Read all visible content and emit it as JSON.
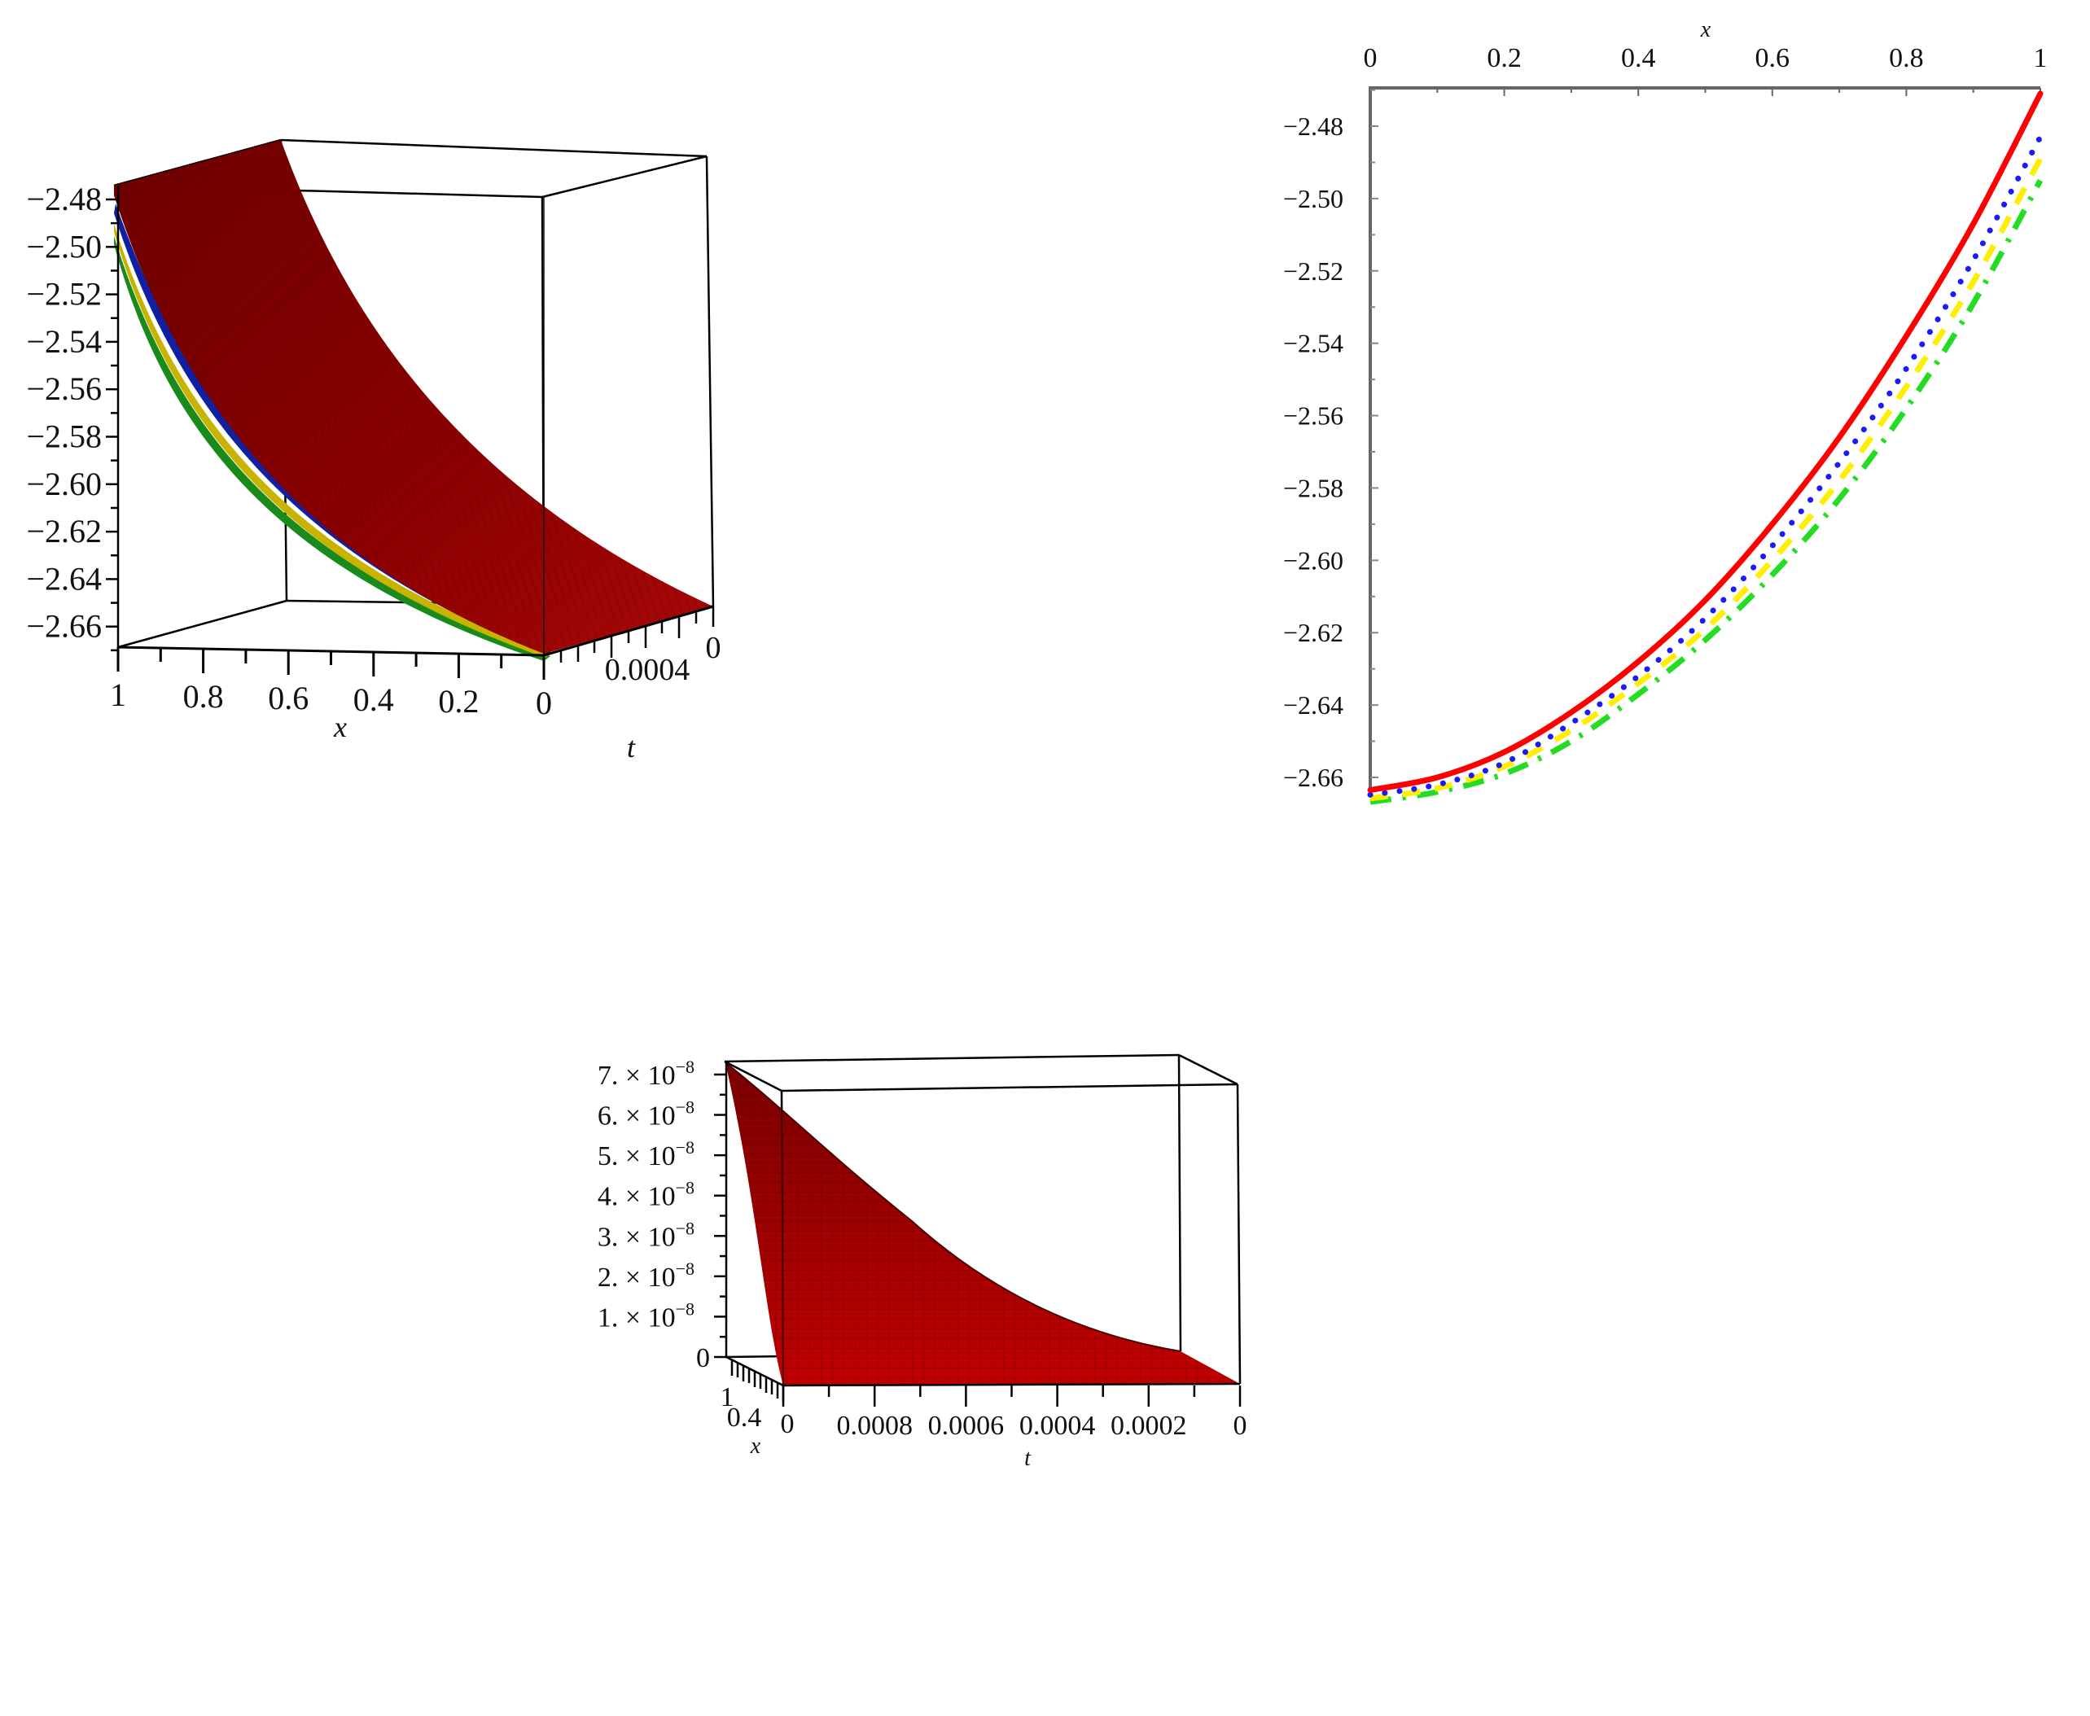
{
  "figure": {
    "panels": [
      {
        "id": "top-left-3d",
        "type": "surface3d",
        "xlabel": "x",
        "ylabel": "t",
        "z_ticks": [
          "-2.48",
          "-2.50",
          "-2.52",
          "-2.54",
          "-2.56",
          "-2.58",
          "-2.60",
          "-2.62",
          "-2.64",
          "-2.66"
        ],
        "x_ticks": [
          "1",
          "0.8",
          "0.6",
          "0.4",
          "0.2",
          "0"
        ],
        "t_ticks": [
          "0.0004",
          "0"
        ],
        "surface_colors": [
          "#8b0000",
          "#1020a0",
          "#c8b400",
          "#1a8a1a"
        ]
      },
      {
        "id": "top-right-2d",
        "type": "line",
        "xlabel": "x",
        "x_ticks": [
          "0",
          "0.2",
          "0.4",
          "0.6",
          "0.8",
          "1"
        ],
        "y_ticks": [
          "-2.48",
          "-2.50",
          "-2.52",
          "-2.54",
          "-2.56",
          "-2.58",
          "-2.60",
          "-2.62",
          "-2.64",
          "-2.66"
        ]
      },
      {
        "id": "bottom-3d",
        "type": "surface3d",
        "xlabel": "x",
        "ylabel": "t",
        "z_ticks": [
          "7. × 10",
          "6. × 10",
          "5. × 10",
          "4. × 10",
          "3. × 10",
          "2. × 10",
          "1. × 10",
          "0"
        ],
        "z_exponent": "-8",
        "x_ticks": [
          "1",
          "0.4",
          "0"
        ],
        "t_ticks": [
          "0.0008",
          "0.0006",
          "0.0004",
          "0.0002",
          "0"
        ],
        "surface_color": "#c00000"
      }
    ]
  },
  "chart_data": [
    {
      "type": "surface3d",
      "title": "",
      "xlabel": "x",
      "ylabel": "t",
      "zlabel": "",
      "xlim": [
        0,
        1
      ],
      "ylim": [
        0,
        0.001
      ],
      "zlim": [
        -2.67,
        -2.47
      ],
      "z_ticks": [
        -2.48,
        -2.5,
        -2.52,
        -2.54,
        -2.56,
        -2.58,
        -2.6,
        -2.62,
        -2.64,
        -2.66
      ],
      "x_ticks": [
        1,
        0.8,
        0.6,
        0.4,
        0.2,
        0
      ],
      "t_ticks": [
        0.0004,
        0
      ],
      "series": [
        {
          "name": "surface-red",
          "color": "#8b0000"
        },
        {
          "name": "surface-blue",
          "color": "#1020a0"
        },
        {
          "name": "surface-yellow",
          "color": "#c8b400"
        },
        {
          "name": "surface-green",
          "color": "#1a8a1a"
        }
      ],
      "description": "Overlapping surfaces u(x,t) rising from about -2.665 at x=0 to about -2.47 at x=1, nearly constant in t"
    },
    {
      "type": "line",
      "title": "",
      "xlabel": "x",
      "ylabel": "",
      "xlim": [
        0,
        1
      ],
      "ylim": [
        -2.67,
        -2.465
      ],
      "x_axis_position": "top",
      "grid": false,
      "x": [
        0,
        0.1,
        0.2,
        0.3,
        0.4,
        0.5,
        0.6,
        0.7,
        0.8,
        0.9,
        1.0
      ],
      "series": [
        {
          "name": "solid",
          "color": "#ff0000",
          "style": "solid",
          "values": [
            -2.6635,
            -2.66,
            -2.653,
            -2.642,
            -2.628,
            -2.611,
            -2.59,
            -2.566,
            -2.538,
            -2.507,
            -2.471
          ]
        },
        {
          "name": "dotted",
          "color": "#1a1aff",
          "style": "dotted",
          "values": [
            -2.6648,
            -2.662,
            -2.656,
            -2.645,
            -2.632,
            -2.616,
            -2.596,
            -2.573,
            -2.547,
            -2.517,
            -2.483
          ]
        },
        {
          "name": "dashed",
          "color": "#ffee00",
          "style": "dashed",
          "values": [
            -2.6658,
            -2.663,
            -2.657,
            -2.647,
            -2.634,
            -2.619,
            -2.6,
            -2.578,
            -2.552,
            -2.523,
            -2.489
          ]
        },
        {
          "name": "dash-dot",
          "color": "#22dd22",
          "style": "dashdot",
          "values": [
            -2.6668,
            -2.664,
            -2.659,
            -2.65,
            -2.637,
            -2.622,
            -2.604,
            -2.583,
            -2.558,
            -2.529,
            -2.495
          ]
        }
      ]
    },
    {
      "type": "surface3d",
      "title": "",
      "xlabel": "x",
      "ylabel": "t",
      "zlabel": "",
      "xlim": [
        0,
        1
      ],
      "ylim": [
        0,
        0.001
      ],
      "zlim": [
        0,
        7.3e-08
      ],
      "z_ticks": [
        0,
        1e-08,
        2e-08,
        3e-08,
        4e-08,
        5e-08,
        6e-08,
        7e-08
      ],
      "t_ticks": [
        0.0008,
        0.0006,
        0.0004,
        0.0002,
        0
      ],
      "x_ticks": [
        1,
        0.4,
        0
      ],
      "series": [
        {
          "name": "error-surface",
          "color": "#c00000"
        }
      ],
      "description": "Error surface rising to about 7.3e-8 at t=0.001 and decaying to 0 at t=0"
    }
  ]
}
